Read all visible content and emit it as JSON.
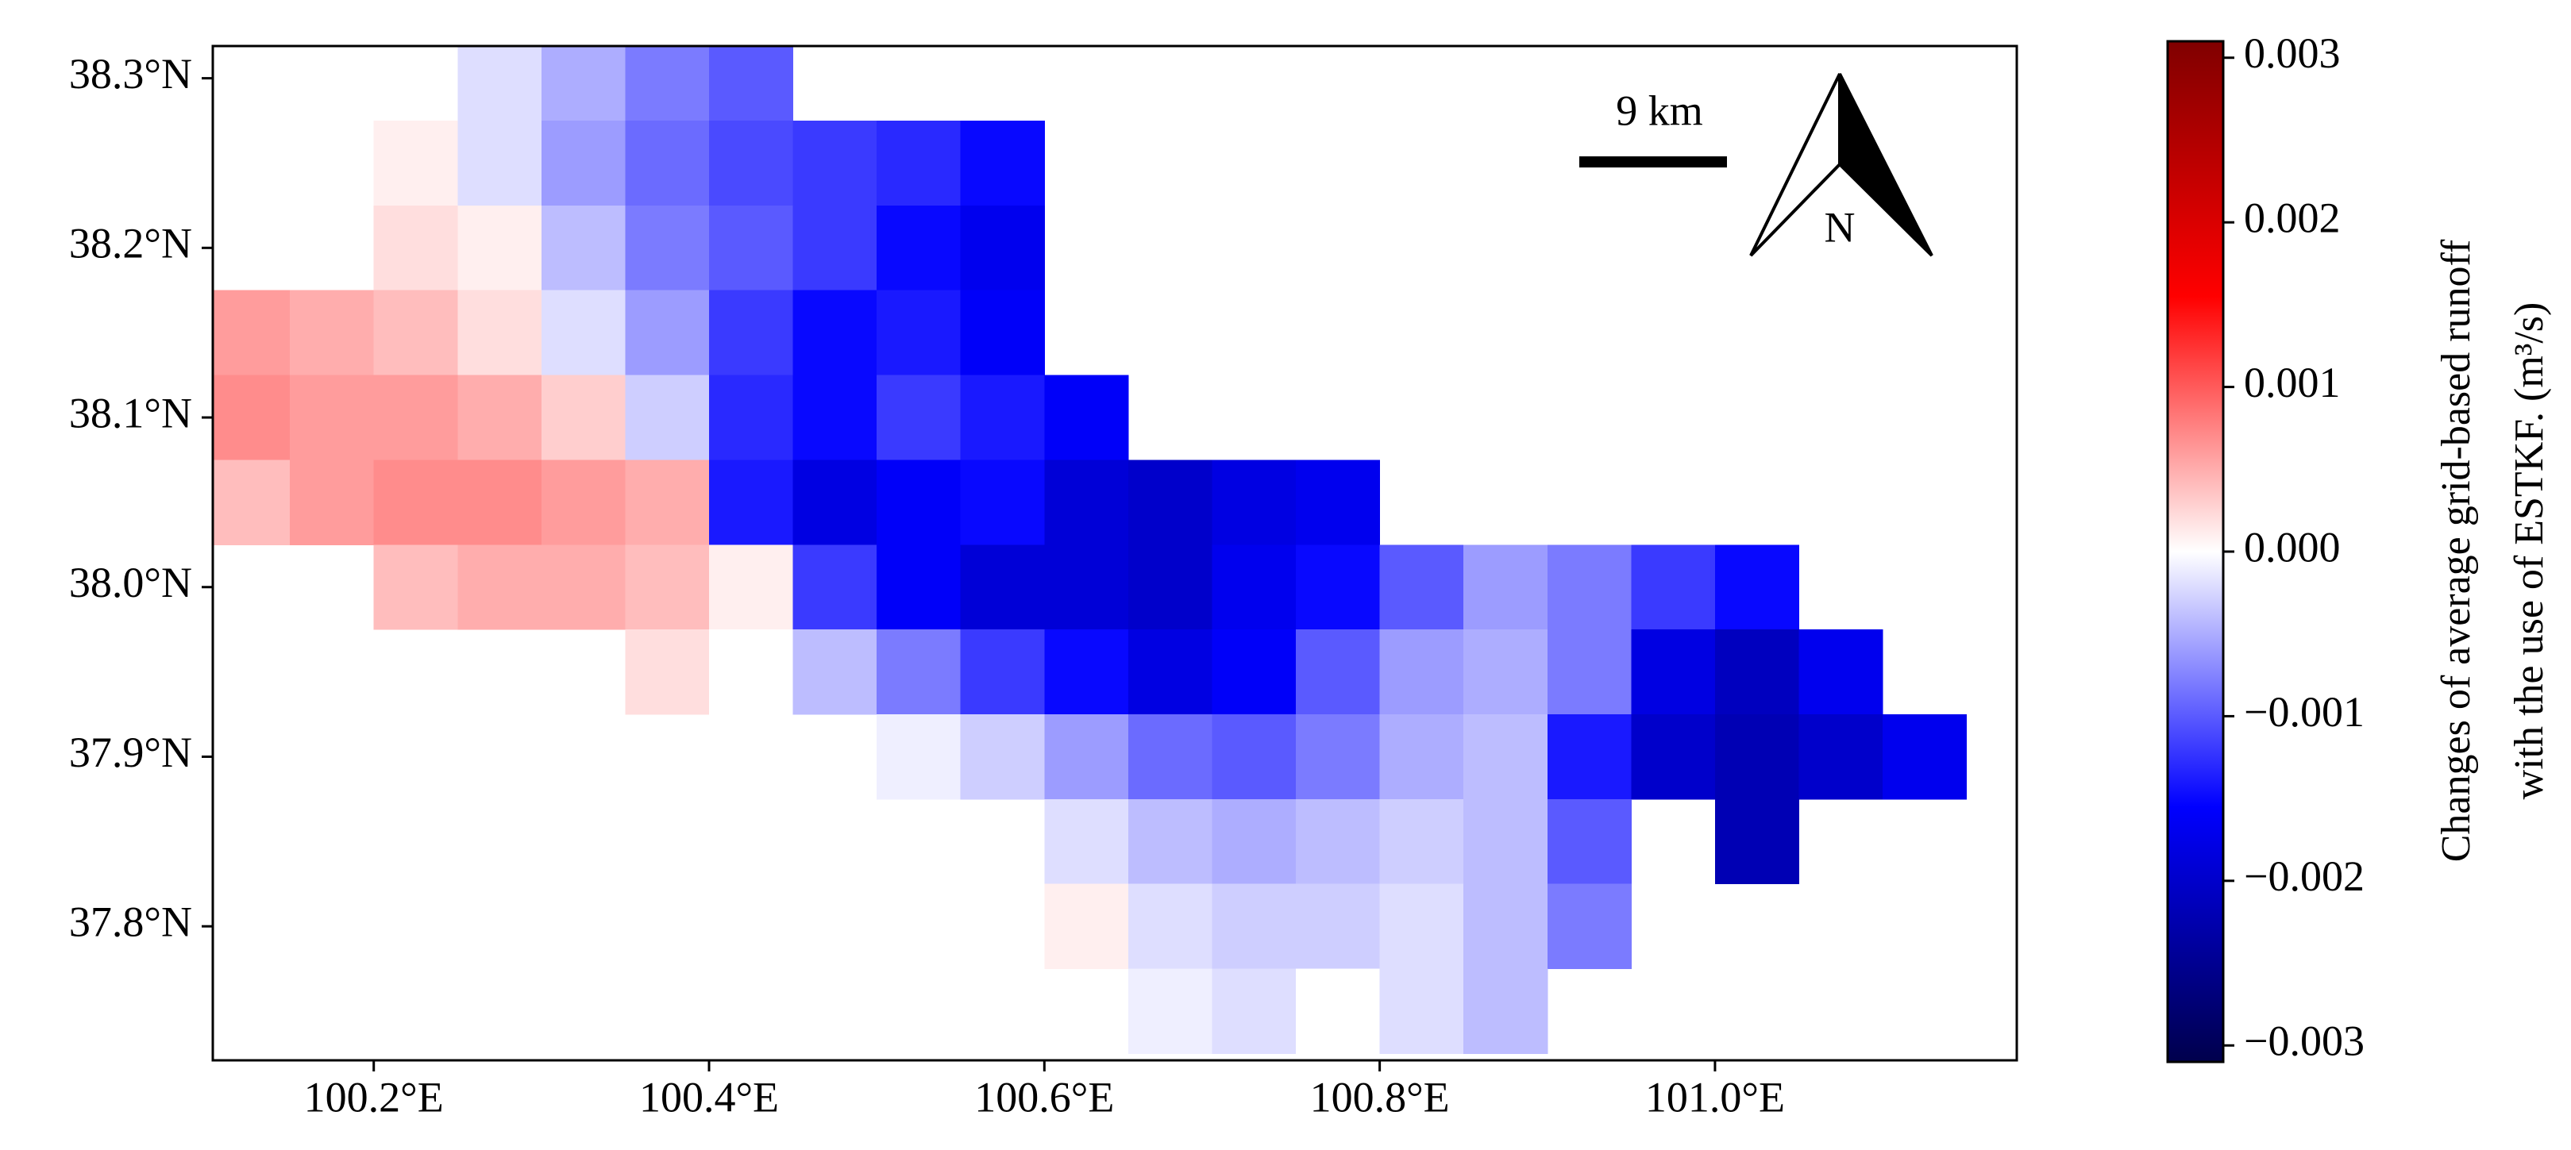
{
  "chart_data": {
    "type": "heatmap",
    "x": [
      100.125,
      100.175,
      100.225,
      100.275,
      100.325,
      100.375,
      100.425,
      100.475,
      100.525,
      100.575,
      100.625,
      100.675,
      100.725,
      100.775,
      100.825,
      100.875,
      100.925,
      100.975,
      101.025,
      101.075,
      101.125
    ],
    "y": [
      38.3,
      38.25,
      38.2,
      38.15,
      38.1,
      38.05,
      38.0,
      37.95,
      37.9,
      37.85,
      37.8,
      37.75
    ],
    "values": [
      [
        null,
        null,
        0,
        -0.0002,
        -0.0005,
        -0.0008,
        -0.001,
        null,
        null,
        null,
        null,
        null,
        null,
        null,
        null,
        null,
        null,
        null,
        null,
        null,
        null
      ],
      [
        null,
        null,
        0.0001,
        -0.0002,
        -0.0006,
        -0.0009,
        -0.0011,
        -0.0012,
        -0.0013,
        -0.0015,
        null,
        null,
        null,
        null,
        null,
        null,
        null,
        null,
        null,
        null,
        null
      ],
      [
        null,
        null,
        0.0002,
        0.0001,
        -0.0004,
        -0.0008,
        -0.001,
        -0.0012,
        -0.0015,
        -0.0017,
        null,
        null,
        null,
        null,
        null,
        null,
        null,
        null,
        null,
        null,
        null
      ],
      [
        0.0006,
        0.0005,
        0.0004,
        0.0002,
        -0.0002,
        -0.0006,
        -0.0012,
        -0.0015,
        -0.0014,
        -0.0016,
        null,
        null,
        null,
        null,
        null,
        null,
        null,
        null,
        null,
        null,
        null
      ],
      [
        0.0007,
        0.0006,
        0.0006,
        0.0005,
        0.0003,
        -0.0003,
        -0.0013,
        -0.0015,
        -0.0012,
        -0.0014,
        -0.0016,
        null,
        null,
        null,
        null,
        null,
        null,
        null,
        null,
        null,
        null
      ],
      [
        0.0004,
        0.0006,
        0.0007,
        0.0007,
        0.0006,
        0.0005,
        -0.0014,
        -0.0018,
        -0.0016,
        -0.0015,
        -0.0019,
        -0.002,
        -0.0018,
        -0.0017,
        null,
        null,
        null,
        null,
        null,
        null,
        null
      ],
      [
        null,
        null,
        0.0004,
        0.0005,
        0.0005,
        0.0004,
        0.0001,
        -0.0012,
        -0.0016,
        -0.0019,
        -0.0019,
        -0.002,
        -0.0017,
        -0.0015,
        -0.001,
        -0.0006,
        -0.0008,
        -0.0012,
        -0.0015,
        null,
        null
      ],
      [
        null,
        null,
        null,
        null,
        null,
        0.0002,
        0,
        -0.0004,
        -0.0008,
        -0.0012,
        -0.0015,
        -0.0018,
        -0.0016,
        -0.001,
        -0.0006,
        -0.0005,
        -0.0008,
        -0.0018,
        -0.0021,
        -0.0017,
        null
      ],
      [
        null,
        null,
        null,
        null,
        null,
        null,
        null,
        null,
        -0.0001,
        -0.0003,
        -0.0006,
        -0.0009,
        -0.001,
        -0.0008,
        -0.0005,
        -0.0004,
        -0.0014,
        -0.002,
        -0.0022,
        -0.002,
        -0.0017
      ],
      [
        null,
        null,
        null,
        null,
        null,
        null,
        null,
        null,
        null,
        null,
        -0.0002,
        -0.0004,
        -0.0005,
        -0.0004,
        -0.0003,
        -0.0004,
        -0.001,
        null,
        -0.0022,
        null,
        null
      ],
      [
        null,
        null,
        null,
        null,
        null,
        null,
        null,
        null,
        null,
        null,
        0.0001,
        -0.0002,
        -0.0003,
        -0.0003,
        -0.0002,
        -0.0004,
        -0.0008,
        null,
        null,
        null,
        null
      ],
      [
        null,
        null,
        null,
        null,
        null,
        null,
        null,
        null,
        null,
        null,
        null,
        -0.0001,
        -0.0002,
        0,
        -0.0002,
        -0.0004,
        null,
        null,
        null,
        null,
        null
      ]
    ],
    "xlim": [
      100.104,
      101.18
    ],
    "ylim": [
      37.721,
      38.319
    ],
    "xticks": [
      {
        "value": 100.2,
        "label": "100.2°E"
      },
      {
        "value": 100.4,
        "label": "100.4°E"
      },
      {
        "value": 100.6,
        "label": "100.6°E"
      },
      {
        "value": 100.8,
        "label": "100.8°E"
      },
      {
        "value": 101.0,
        "label": "101.0°E"
      }
    ],
    "yticks": [
      {
        "value": 37.8,
        "label": "37.8°N"
      },
      {
        "value": 37.9,
        "label": "37.9°N"
      },
      {
        "value": 38.0,
        "label": "38.0°N"
      },
      {
        "value": 38.1,
        "label": "38.1°N"
      },
      {
        "value": 38.2,
        "label": "38.2°N"
      },
      {
        "value": 38.3,
        "label": "38.3°N"
      }
    ],
    "colorbar": {
      "label": [
        "Changes of average grid-based runoff",
        "with the use of ESTKF. (m³/s)"
      ],
      "clim": [
        -0.0031,
        0.0031
      ],
      "ticks": [
        {
          "value": -0.003,
          "label": "−0.003"
        },
        {
          "value": -0.002,
          "label": "−0.002"
        },
        {
          "value": -0.001,
          "label": "−0.001"
        },
        {
          "value": 0,
          "label": "0.000"
        },
        0.001,
        0.002,
        0.003
      ],
      "colormap": [
        "#00004c",
        "#0000ff",
        "#ffffff",
        "#ff0000",
        "#800000"
      ]
    },
    "annotations": {
      "scale_bar": "9 km",
      "north": "N"
    }
  }
}
